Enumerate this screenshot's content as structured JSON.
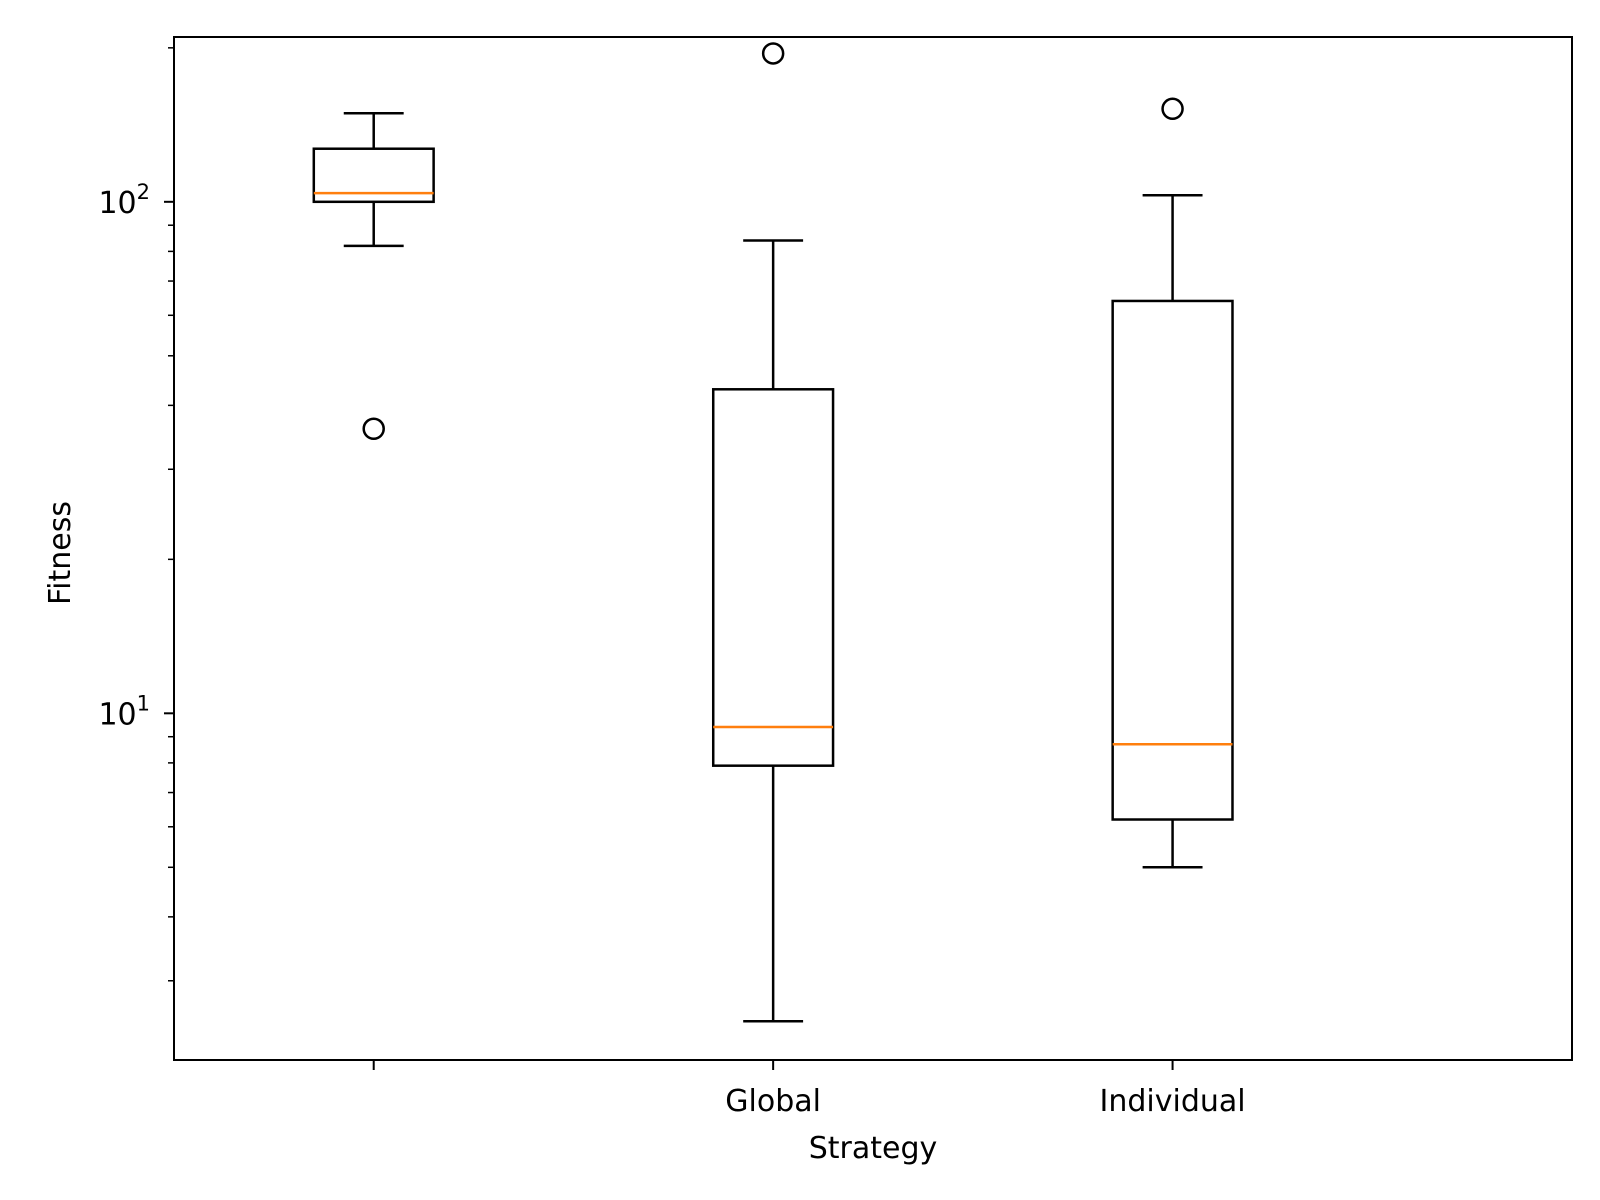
{
  "chart_data": {
    "type": "boxplot",
    "title": "",
    "xlabel": "Strategy",
    "ylabel": "Fitness",
    "yscale": "log",
    "ylim": [
      2.1,
      210
    ],
    "grid": false,
    "legend": "none",
    "categories": [
      "",
      "Global",
      "Individual"
    ],
    "y_ticks": [
      {
        "base": "10",
        "exp": "1",
        "value": 10
      },
      {
        "base": "10",
        "exp": "2",
        "value": 100
      }
    ],
    "boxes": [
      {
        "category": "",
        "whisker_low": 82,
        "q1": 100,
        "median": 104,
        "q3": 127,
        "whisker_high": 149,
        "outliers": [
          36
        ]
      },
      {
        "category": "Global",
        "whisker_low": 2.5,
        "q1": 7.9,
        "median": 9.4,
        "q3": 43,
        "whisker_high": 84,
        "outliers": [
          195
        ]
      },
      {
        "category": "Individual",
        "whisker_low": 5.0,
        "q1": 6.2,
        "median": 8.7,
        "q3": 64,
        "whisker_high": 103,
        "outliers": [
          152
        ]
      }
    ],
    "colors": {
      "box": "#000000",
      "median": "#ff7f0e",
      "outlier": "#000000"
    }
  }
}
